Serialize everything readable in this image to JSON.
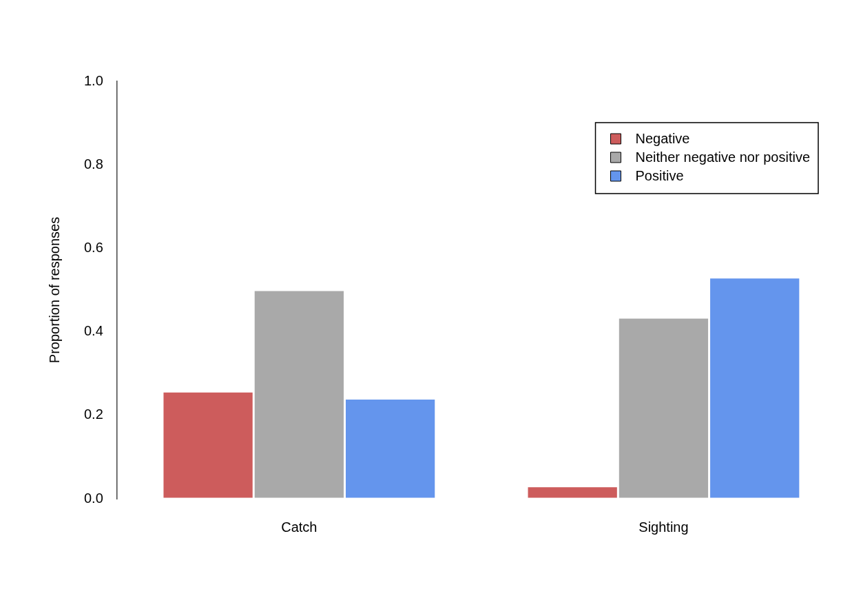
{
  "chart_data": {
    "type": "bar",
    "ylabel": "Proportion of responses",
    "categories": [
      "Catch",
      "Sighting"
    ],
    "series": [
      {
        "name": "Negative",
        "color": "#cd5c5c",
        "values": [
          0.257,
          0.03
        ]
      },
      {
        "name": "Neither negative nor positive",
        "color": "#a9a9a9",
        "values": [
          0.5,
          0.434
        ]
      },
      {
        "name": "Positive",
        "color": "#6495ed",
        "values": [
          0.24,
          0.53
        ]
      }
    ],
    "ylim": [
      0,
      1
    ],
    "yticks": [
      {
        "value": 0,
        "label": "0.0"
      },
      {
        "value": 0.2,
        "label": "0.2"
      },
      {
        "value": 0.4,
        "label": "0.4"
      },
      {
        "value": 0.6,
        "label": "0.6"
      },
      {
        "value": 0.8,
        "label": "0.8"
      },
      {
        "value": 1,
        "label": "1.0"
      }
    ],
    "grid": false,
    "legend": "top right"
  }
}
